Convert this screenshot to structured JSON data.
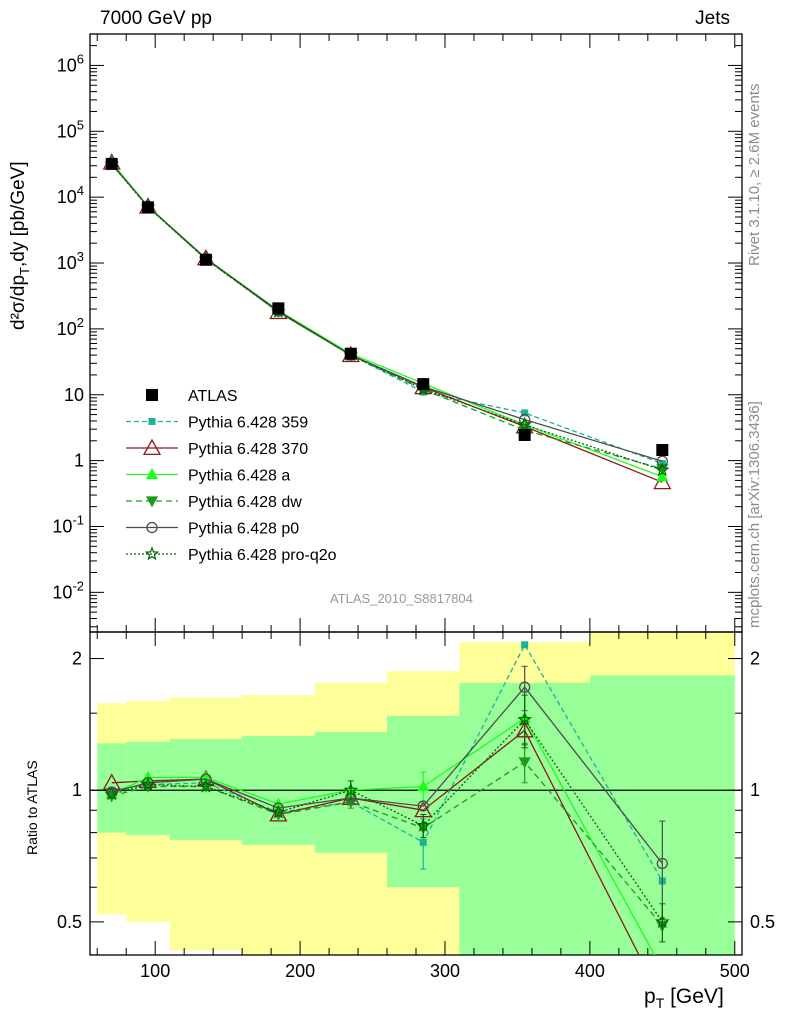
{
  "header": {
    "left": "7000 GeV pp",
    "right": "Jets"
  },
  "side_labels": {
    "rivet": "Rivet 3.1.10, ≥ 2.6M events",
    "mcplots": "mcplots.cern.ch [arXiv:1306.3436]"
  },
  "analysis_tag": "ATLAS_2010_S8817804",
  "colors": {
    "data": "#000000",
    "p359": "#1ab395",
    "p370": "#8b1a1a",
    "pa": "#1aff1a",
    "pdw": "#1a9c1a",
    "pp0": "#4d4d4d",
    "pq2o": "#006600",
    "band_inner": "#99ff99",
    "band_outer": "#ffff99"
  },
  "chart_data": [
    {
      "type": "scatter",
      "panel": "main",
      "ylabel_main": "d²σ/dp",
      "ylabel_sub1": "T",
      "ylabel_mid": ",dy [pb/GeV]",
      "yscale": "log",
      "ylim": [
        0.0025,
        3000000
      ],
      "xlim": [
        55,
        505
      ],
      "y_ticks": [
        "10^-2",
        "10^-1",
        "1",
        "10",
        "10^2",
        "10^3",
        "10^4",
        "10^5",
        "10^6"
      ],
      "legend_position": "lower-left",
      "series": [
        {
          "key": "data",
          "name": "ATLAS",
          "x": [
            70,
            95,
            135,
            185,
            235,
            285,
            355,
            450
          ],
          "y": [
            32000,
            7000,
            1120,
            205,
            42,
            14.5,
            2.45,
            1.45
          ]
        },
        {
          "key": "p359",
          "name": "Pythia 6.428 359",
          "x": [
            70,
            95,
            135,
            185,
            235,
            285,
            355,
            450
          ],
          "y": [
            32500,
            7100,
            1150,
            185,
            40,
            11,
            5.3,
            0.9
          ]
        },
        {
          "key": "p370",
          "name": "Pythia 6.428 370",
          "x": [
            70,
            95,
            135,
            185,
            235,
            285,
            355,
            450
          ],
          "y": [
            33500,
            7200,
            1180,
            180,
            40,
            13,
            3.3,
            0.47
          ]
        },
        {
          "key": "pa",
          "name": "Pythia 6.428 a",
          "x": [
            70,
            95,
            135,
            185,
            235,
            285,
            355,
            450
          ],
          "y": [
            33500,
            7300,
            1180,
            190,
            42,
            14.8,
            3.5,
            0.57
          ]
        },
        {
          "key": "pdw",
          "name": "Pythia 6.428 dw",
          "x": [
            70,
            95,
            135,
            185,
            235,
            285,
            355,
            450
          ],
          "y": [
            32000,
            7200,
            1140,
            182,
            40,
            12,
            2.9,
            0.75
          ]
        },
        {
          "key": "pp0",
          "name": "Pythia 6.428 p0",
          "x": [
            70,
            95,
            135,
            185,
            235,
            285,
            355,
            450
          ],
          "y": [
            32000,
            7200,
            1170,
            187,
            40,
            13.3,
            4.2,
            0.98
          ]
        },
        {
          "key": "pq2o",
          "name": "Pythia 6.428 pro-q2o",
          "x": [
            70,
            95,
            135,
            185,
            235,
            285,
            355,
            450
          ],
          "y": [
            31500,
            7100,
            1140,
            182,
            40,
            12.2,
            3.5,
            0.72
          ]
        }
      ]
    },
    {
      "type": "scatter",
      "panel": "ratio",
      "ylabel": "Ratio to ATLAS",
      "xlabel_main": "p",
      "xlabel_sub": "T",
      "xlabel_unit": " [GeV]",
      "ylim": [
        0.42,
        2.3
      ],
      "xlim": [
        55,
        505
      ],
      "x_ticks": [
        100,
        200,
        300,
        400,
        500
      ],
      "y_ticks": [
        0.5,
        1,
        2
      ],
      "bins": [
        {
          "lo": 60,
          "hi": 80,
          "inner": [
            0.8,
            1.28
          ],
          "outer": [
            0.52,
            1.58
          ]
        },
        {
          "lo": 80,
          "hi": 110,
          "inner": [
            0.79,
            1.29
          ],
          "outer": [
            0.5,
            1.6
          ]
        },
        {
          "lo": 110,
          "hi": 160,
          "inner": [
            0.77,
            1.31
          ],
          "outer": [
            0.43,
            1.63
          ]
        },
        {
          "lo": 160,
          "hi": 210,
          "inner": [
            0.75,
            1.33
          ],
          "outer": [
            0.42,
            1.65
          ]
        },
        {
          "lo": 210,
          "hi": 260,
          "inner": [
            0.72,
            1.36
          ],
          "outer": [
            0.42,
            1.76
          ]
        },
        {
          "lo": 260,
          "hi": 310,
          "inner": [
            0.6,
            1.48
          ],
          "outer": [
            0.42,
            1.87
          ]
        },
        {
          "lo": 310,
          "hi": 400,
          "inner": [
            0.42,
            1.76
          ],
          "outer": [
            0.42,
            2.18
          ]
        },
        {
          "lo": 400,
          "hi": 500,
          "inner": [
            0.42,
            1.83
          ],
          "outer": [
            0.42,
            2.3
          ]
        }
      ],
      "series": [
        {
          "key": "p359",
          "name": "Pythia 6.428 359",
          "x": [
            70,
            95,
            135,
            185,
            235,
            285,
            355,
            450
          ],
          "y": [
            1.0,
            1.03,
            1.04,
            0.89,
            0.94,
            0.76,
            2.15,
            0.62
          ],
          "err": [
            0,
            0,
            0,
            0,
            0,
            0.1,
            0,
            0
          ]
        },
        {
          "key": "p370",
          "name": "Pythia 6.428 370",
          "x": [
            70,
            95,
            135,
            185,
            235,
            285,
            355,
            450
          ],
          "y": [
            1.04,
            1.05,
            1.06,
            0.88,
            0.96,
            0.9,
            1.37,
            0.33
          ],
          "err": [
            0,
            0,
            0,
            0,
            0,
            0,
            0.1,
            0
          ]
        },
        {
          "key": "pa",
          "name": "Pythia 6.428 a",
          "x": [
            70,
            95,
            135,
            185,
            235,
            285,
            355,
            450
          ],
          "y": [
            0.98,
            1.07,
            1.07,
            0.93,
            1.0,
            1.02,
            1.46,
            0.39
          ],
          "err": [
            0,
            0,
            0,
            0,
            0,
            0.08,
            0,
            0
          ]
        },
        {
          "key": "pdw",
          "name": "Pythia 6.428 dw",
          "x": [
            70,
            95,
            135,
            185,
            235,
            285,
            355,
            450
          ],
          "y": [
            0.97,
            1.02,
            1.02,
            0.88,
            0.94,
            0.82,
            1.16,
            0.49
          ],
          "err": [
            0,
            0,
            0,
            0,
            0.03,
            0,
            0.12,
            0
          ]
        },
        {
          "key": "pp0",
          "name": "Pythia 6.428 p0",
          "x": [
            70,
            95,
            135,
            185,
            235,
            285,
            355,
            450
          ],
          "y": [
            0.99,
            1.04,
            1.06,
            0.91,
            0.96,
            0.92,
            1.72,
            0.68
          ],
          "err": [
            0,
            0,
            0,
            0,
            0,
            0,
            0.2,
            0.17
          ]
        },
        {
          "key": "pq2o",
          "name": "Pythia 6.428 pro-q2o",
          "x": [
            70,
            95,
            135,
            185,
            235,
            285,
            355,
            450
          ],
          "y": [
            0.98,
            1.03,
            1.02,
            0.89,
            1.0,
            0.83,
            1.45,
            0.5
          ],
          "err": [
            0,
            0,
            0,
            0,
            0.05,
            0.05,
            0.2,
            0.05
          ]
        }
      ]
    }
  ]
}
